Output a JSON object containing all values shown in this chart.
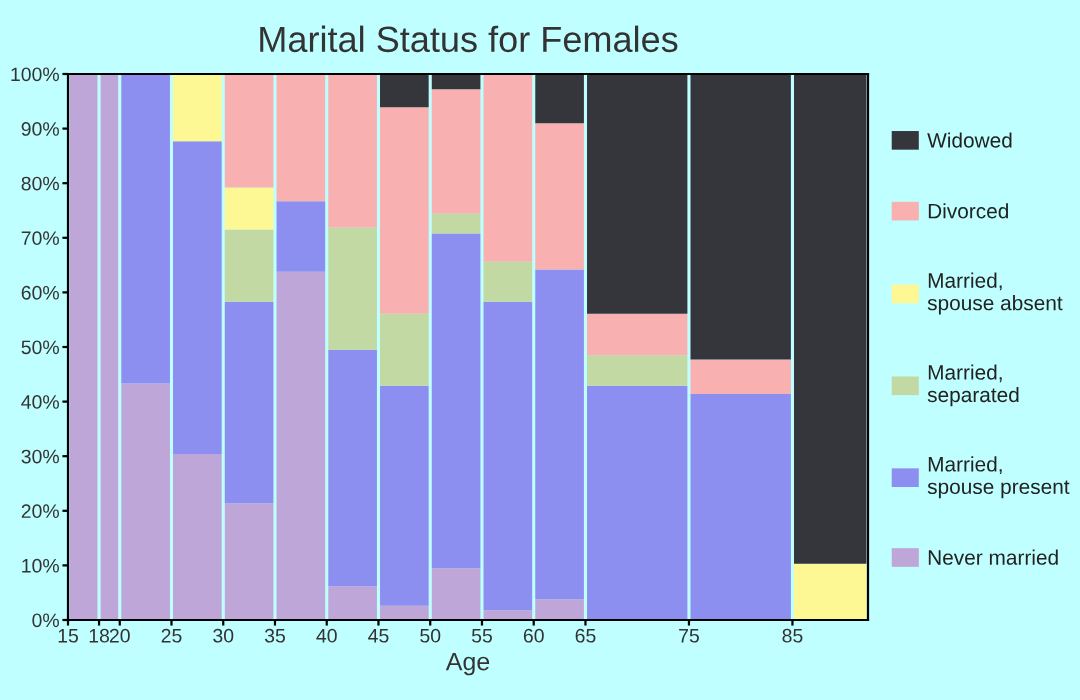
{
  "chart_data": {
    "type": "bar",
    "stacked": true,
    "title": "Marital Status for Females",
    "xlabel": "Age",
    "x": [
      16.5,
      19,
      22.5,
      27.5,
      32.5,
      37.5,
      42.5,
      47.5,
      52.5,
      57.5,
      62.5,
      70,
      80,
      88.65
    ],
    "xlim": [
      15,
      92.3
    ],
    "xticks": [
      15,
      18,
      20,
      25,
      30,
      35,
      40,
      45,
      50,
      55,
      60,
      65,
      75,
      85
    ],
    "ylim": [
      0,
      100
    ],
    "yticks": [
      {
        "value": 0,
        "label": "0%"
      },
      {
        "value": 10,
        "label": "10%"
      },
      {
        "value": 20,
        "label": "20%"
      },
      {
        "value": 30,
        "label": "30%"
      },
      {
        "value": 40,
        "label": "40%"
      },
      {
        "value": 50,
        "label": "50%"
      },
      {
        "value": 60,
        "label": "60%"
      },
      {
        "value": 70,
        "label": "70%"
      },
      {
        "value": 80,
        "label": "80%"
      },
      {
        "value": 90,
        "label": "90%"
      },
      {
        "value": 100,
        "label": "100%"
      }
    ],
    "grid": false,
    "legend": "right",
    "series": [
      {
        "name": "Never married",
        "color": "#bea6d8",
        "values": [
          100,
          100,
          43.3,
          30.4,
          21.4,
          63.8,
          6.2,
          2.6,
          9.5,
          1.8,
          3.8,
          0,
          0,
          0
        ]
      },
      {
        "name": "Married, spouse present",
        "color": "#8d8ff0",
        "values": [
          0,
          0,
          56.7,
          57.3,
          36.9,
          12.9,
          43.3,
          40.3,
          61.3,
          56.5,
          60.4,
          42.9,
          41.4,
          0
        ]
      },
      {
        "name": "Married, separated",
        "color": "#c2d9a4",
        "values": [
          0,
          0,
          0,
          0,
          13.2,
          0,
          22.4,
          13.2,
          3.6,
          7.3,
          0,
          5.6,
          0,
          0
        ]
      },
      {
        "name": "Married, spouse absent",
        "color": "#fdf894",
        "values": [
          0,
          0,
          0,
          12.3,
          7.7,
          0,
          0,
          0,
          0,
          0,
          0,
          0,
          0,
          10.3
        ]
      },
      {
        "name": "Divorced",
        "color": "#f8b0b0",
        "values": [
          0,
          0,
          0,
          0,
          20.8,
          23.3,
          28.1,
          37.8,
          22.8,
          34.4,
          26.8,
          7.6,
          6.3,
          0
        ]
      },
      {
        "name": "Widowed",
        "color": "#35363c",
        "values": [
          0,
          0,
          0,
          0,
          0,
          0,
          0,
          6.1,
          2.8,
          0,
          9.0,
          43.9,
          52.3,
          89.7
        ]
      }
    ]
  }
}
